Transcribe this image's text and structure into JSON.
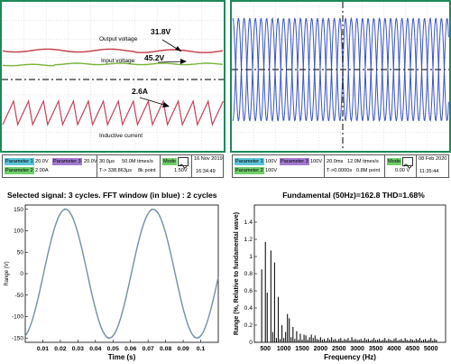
{
  "colors": {
    "frame_green": "#1c8a58",
    "grid": "#2a2a2a",
    "trace_red": "#c23a48",
    "trace_green": "#7ab23a",
    "trace_pink": "#c8405a",
    "trace_blue": "#3a55c8",
    "fft_sig": "#6f82d8",
    "fft_bar": "#111111",
    "chip_cyan": "#5bc4d8",
    "chip_purple": "#a27ad1",
    "chip_green": "#6fcf6b"
  },
  "scope1": {
    "annotations": {
      "output_label": "Output voltage",
      "output_value": "31.8V",
      "input_label": "Input voltage",
      "input_value": "45.2V",
      "current_value": "2.6A",
      "current_label": "Inductive current"
    },
    "status": {
      "p1_label": "Parameter 1",
      "p1_value": "20.0V",
      "p3_label": "Parameter 3",
      "p3_value": "20.0V",
      "p2_label": "Parameter 2",
      "p2_value": "2.00A",
      "timebase": "30.0μs",
      "rate": "50.0M times/s",
      "trigger": "T-> 338.863μs",
      "points": "8k point",
      "mode_label": "Mode",
      "mode_value": "1.50V",
      "date": "16 Nov 2019",
      "time": "16:34:49"
    }
  },
  "scope2": {
    "status": {
      "p1_label": "Parameter 1",
      "p1_value": "100V",
      "p3_label": "Parameter 3",
      "p3_value": "100V",
      "p2_label": "Parameter 2",
      "p2_value": "100V",
      "timebase": "20.0ms",
      "rate": "12.0M times/s",
      "trigger": "T->0.0000s",
      "points": "0.8M point",
      "mode_label": "Mode",
      "mode_value": "0.00 V",
      "date": "08 Feb 2020",
      "time": "11:35:44"
    }
  },
  "chart_data": [
    {
      "type": "line",
      "title": "Selected signal: 3 cycles.  FFT  window (in blue) : 2 cycles",
      "xlabel": "Time (s)",
      "ylabel": "Range (V)",
      "xlim": [
        0.0,
        0.11
      ],
      "ylim": [
        -160,
        160
      ],
      "x_ticks": [
        "0.01",
        "0.02",
        "0.03",
        "0.04",
        "0.05",
        "0.06",
        "0.07",
        "0.08",
        "0.09",
        "0.1"
      ],
      "y_ticks": [
        "-150",
        "-100",
        "-50",
        "0",
        "50",
        "100",
        "150"
      ],
      "grid": false,
      "series": [
        {
          "amplitude": 150,
          "frequency_hz": 20,
          "phase_deg": -75
        }
      ]
    },
    {
      "type": "bar",
      "title": "Fundamental (50Hz)=162.8  THD=1.68%",
      "xlabel": "Frequency (Hz)",
      "ylabel": "Range (%, Relative to fundamental wave)",
      "xlim": [
        200,
        5400
      ],
      "ylim": [
        0,
        1.6
      ],
      "x_ticks": [
        "500",
        "1000",
        "1500",
        "2000",
        "2500",
        "3000",
        "3500",
        "4000",
        "4500",
        "5000"
      ],
      "y_ticks": [
        "0",
        "0.2",
        "0.4",
        "0.6",
        "0.8",
        "1",
        "1.2",
        "1.4"
      ],
      "grid": false,
      "x": [
        400,
        500,
        550,
        650,
        700,
        750,
        800,
        850,
        900,
        950,
        1000,
        1050,
        1100,
        1150,
        1200,
        1250,
        1300,
        1350,
        1400,
        1450,
        1500,
        1550,
        1600,
        1650,
        1700,
        1750,
        1800,
        1850,
        1900,
        1950,
        2000,
        2050,
        2100,
        2150,
        2200,
        2250,
        2300,
        2350,
        2400,
        2450,
        2500,
        2550,
        2600,
        2650,
        2700,
        2750,
        2800,
        2850,
        2900,
        2950,
        3000,
        3050,
        3100,
        3150,
        3200,
        3250,
        3300,
        3350,
        3400,
        3450,
        3500,
        3550,
        3600,
        3650,
        3700,
        3750,
        3800,
        3850,
        3900,
        3950,
        4000,
        4050,
        4100,
        4150,
        4200,
        4250,
        4300,
        4350,
        4400,
        4450,
        4500,
        4550,
        4600,
        4650,
        4700,
        4750,
        4800,
        4850,
        4900,
        4950,
        5000,
        5050,
        5100,
        5150
      ],
      "values": [
        0.85,
        1.17,
        0.58,
        1.07,
        0.12,
        0.93,
        0.05,
        0.53,
        0.04,
        0.2,
        0.05,
        0.12,
        0.33,
        0.28,
        0.06,
        0.18,
        0.04,
        0.13,
        0.03,
        0.1,
        0.03,
        0.09,
        0.08,
        0.03,
        0.06,
        0.09,
        0.05,
        0.08,
        0.04,
        0.03,
        0.06,
        0.03,
        0.04,
        0.02,
        0.05,
        0.03,
        0.06,
        0.03,
        0.04,
        0.02,
        0.04,
        0.05,
        0.02,
        0.04,
        0.03,
        0.05,
        0.02,
        0.06,
        0.03,
        0.04,
        0.02,
        0.03,
        0.04,
        0.02,
        0.05,
        0.03,
        0.04,
        0.02,
        0.03,
        0.05,
        0.02,
        0.03,
        0.04,
        0.02,
        0.03,
        0.05,
        0.02,
        0.04,
        0.03,
        0.02,
        0.04,
        0.05,
        0.02,
        0.03,
        0.04,
        0.02,
        0.05,
        0.03,
        0.02,
        0.04,
        0.03,
        0.02,
        0.04,
        0.03,
        0.05,
        0.02,
        0.03,
        0.04,
        0.02,
        0.03,
        0.05,
        0.02,
        0.04,
        0.03
      ]
    }
  ]
}
